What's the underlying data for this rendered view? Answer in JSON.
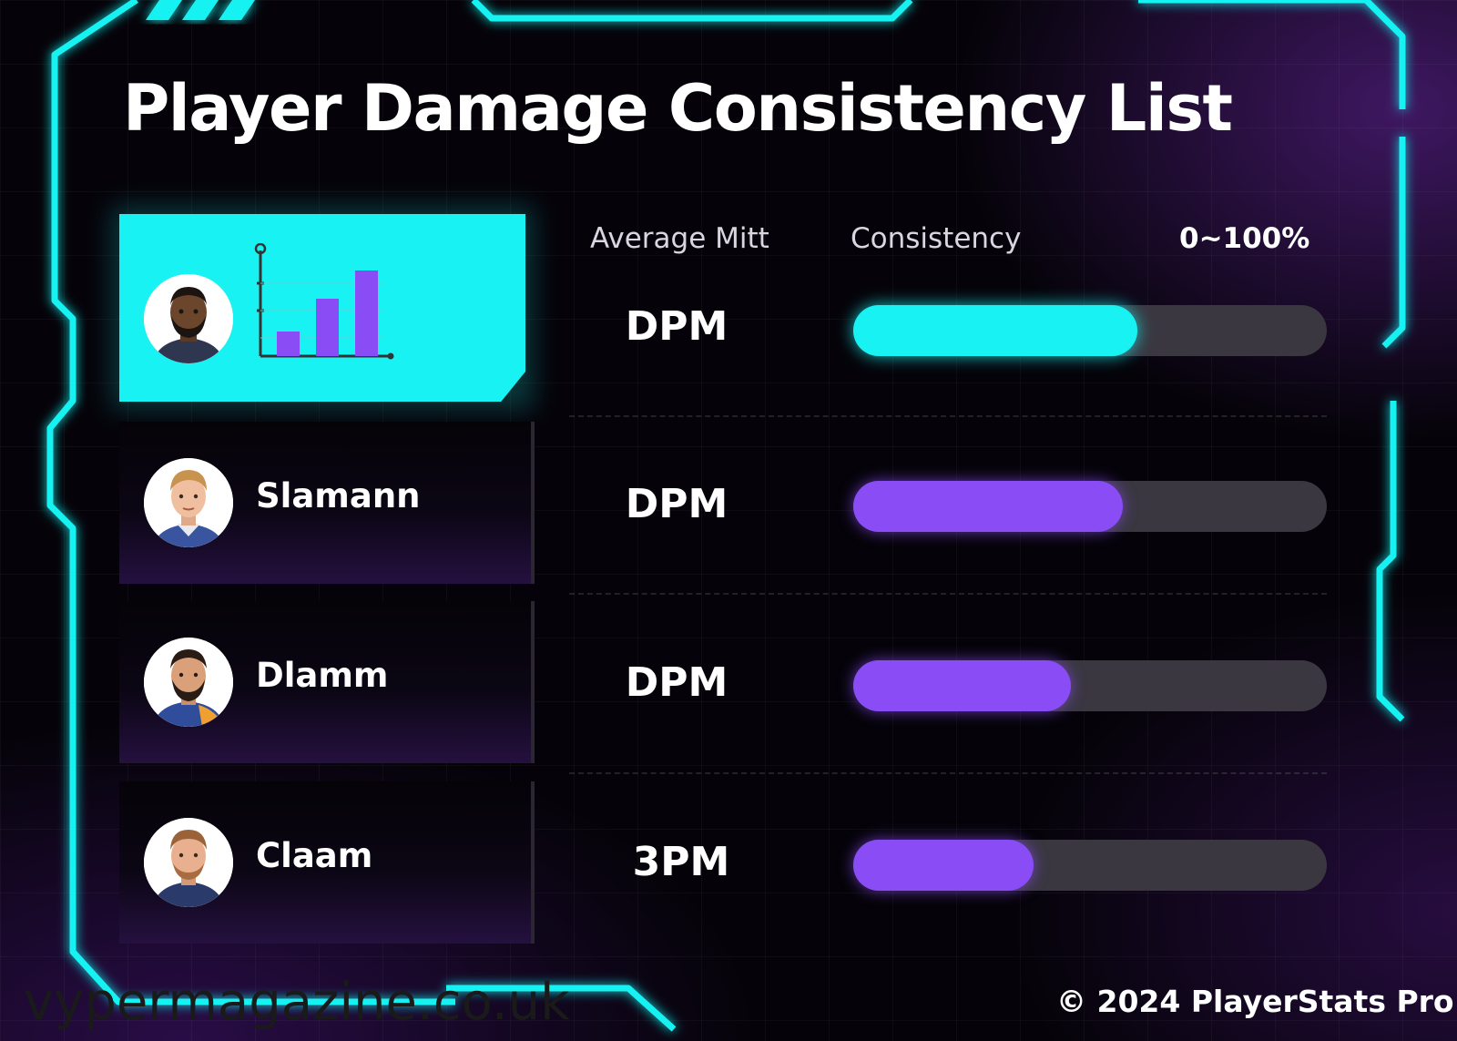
{
  "title": "Player Damage Consistency List",
  "columns": {
    "average": "Average Mitt",
    "consistency": "Consistency",
    "range": "0~100%"
  },
  "players": [
    {
      "name": "",
      "metric": "DPM",
      "consistency_pct": 60,
      "avatar": "player-avatar-dark-beard",
      "highlight": true
    },
    {
      "name": "Slamann",
      "metric": "DPM",
      "consistency_pct": 57,
      "avatar": "player-avatar-blond"
    },
    {
      "name": "Dlamm",
      "metric": "DPM",
      "consistency_pct": 46,
      "avatar": "player-avatar-beard"
    },
    {
      "name": "Claam",
      "metric": "3PM",
      "consistency_pct": 38,
      "avatar": "player-avatar-ginger"
    }
  ],
  "footer": "© 2024 PlayerStats Pro",
  "watermark": "vypermagazine.co.uk",
  "colors": {
    "accent_cyan": "#19f2f2",
    "accent_purple": "#8a4cf5",
    "track": "#3a3740"
  },
  "icons": {
    "chart": "bar-chart-icon"
  }
}
